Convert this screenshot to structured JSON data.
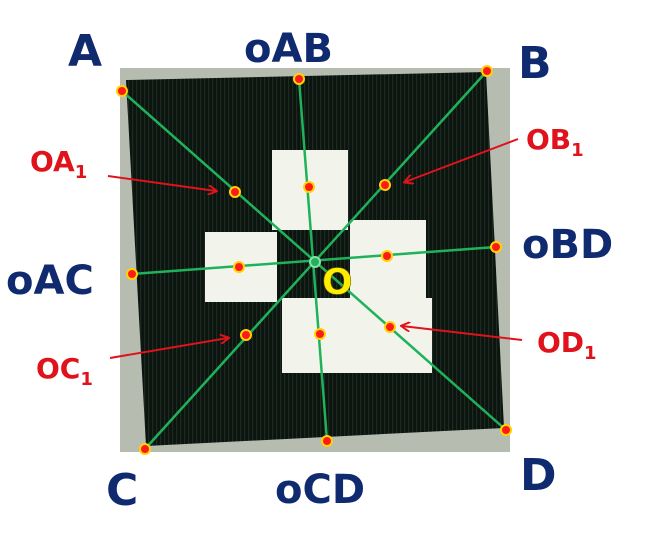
{
  "corners": {
    "A": "A",
    "B": "B",
    "C": "C",
    "D": "D"
  },
  "edge_midpoints": {
    "oAB": "oAB",
    "oAC": "oAC",
    "oBD": "oBD",
    "oCD": "oCD"
  },
  "half_points": {
    "OA1": {
      "main": "OA",
      "sub": "1"
    },
    "OB1": {
      "main": "OB",
      "sub": "1"
    },
    "OC1": {
      "main": "OC",
      "sub": "1"
    },
    "OD1": {
      "main": "OD",
      "sub": "1"
    }
  },
  "center": "O",
  "colors": {
    "line": "#1fb25a",
    "point_fill": "#ff1a1a",
    "point_stroke": "#ffd400",
    "arrow": "#e0121b",
    "corner_text": "#0f2a6e",
    "center_text": "#ffee00",
    "marker_dark": "#0c1410",
    "marker_light": "#f2f4ec",
    "photo_border": "#b6bdb0"
  }
}
